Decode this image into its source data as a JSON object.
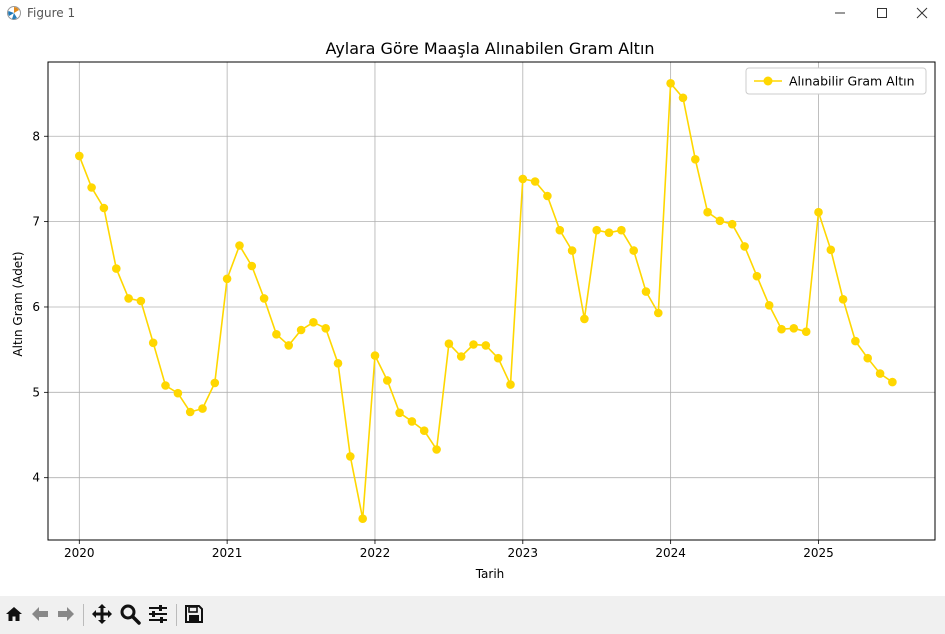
{
  "window": {
    "title": "Figure 1",
    "minimize_icon": "minimize-icon",
    "maximize_icon": "maximize-icon",
    "close_icon": "close-icon"
  },
  "toolbar": {
    "buttons": [
      {
        "name": "home-icon"
      },
      {
        "name": "back-arrow-icon"
      },
      {
        "name": "forward-arrow-icon"
      },
      {
        "name": "pan-move-icon"
      },
      {
        "name": "zoom-magnifier-icon"
      },
      {
        "name": "configure-subplots-icon"
      },
      {
        "name": "save-floppy-icon"
      }
    ]
  },
  "chart_data": {
    "type": "line",
    "title": "Aylara Göre Maaşla Alınabilen Gram Altın",
    "xlabel": "Tarih",
    "ylabel": "Altın Gram (Adet)",
    "xlim": [
      "2019-10-15",
      "2025-10-15"
    ],
    "ylim": [
      3.27,
      8.87
    ],
    "x_ticks": [
      "2020",
      "2021",
      "2022",
      "2023",
      "2024",
      "2025"
    ],
    "y_ticks": [
      "4",
      "5",
      "6",
      "7",
      "8"
    ],
    "grid": true,
    "legend": "top-right",
    "color": "#FFD700",
    "series": [
      {
        "name": "Alınabilir Gram Altın",
        "x": [
          "2020-01",
          "2020-02",
          "2020-03",
          "2020-04",
          "2020-05",
          "2020-06",
          "2020-07",
          "2020-08",
          "2020-09",
          "2020-10",
          "2020-11",
          "2020-12",
          "2021-01",
          "2021-02",
          "2021-03",
          "2021-04",
          "2021-05",
          "2021-06",
          "2021-07",
          "2021-08",
          "2021-09",
          "2021-10",
          "2021-11",
          "2021-12",
          "2022-01",
          "2022-02",
          "2022-03",
          "2022-04",
          "2022-05",
          "2022-06",
          "2022-07",
          "2022-08",
          "2022-09",
          "2022-10",
          "2022-11",
          "2022-12",
          "2023-01",
          "2023-02",
          "2023-03",
          "2023-04",
          "2023-05",
          "2023-06",
          "2023-07",
          "2023-08",
          "2023-09",
          "2023-10",
          "2023-11",
          "2023-12",
          "2024-01",
          "2024-02",
          "2024-03",
          "2024-04",
          "2024-05",
          "2024-06",
          "2024-07",
          "2024-08",
          "2024-09",
          "2024-10",
          "2024-11",
          "2024-12",
          "2025-01",
          "2025-02",
          "2025-03",
          "2025-04",
          "2025-05",
          "2025-06",
          "2025-07"
        ],
        "values": [
          7.77,
          7.4,
          7.16,
          6.45,
          6.1,
          6.07,
          5.58,
          5.08,
          4.99,
          4.77,
          4.81,
          5.11,
          6.33,
          6.72,
          6.48,
          6.1,
          5.68,
          5.55,
          5.73,
          5.82,
          5.75,
          5.34,
          4.25,
          3.52,
          5.43,
          5.14,
          4.76,
          4.66,
          4.55,
          4.33,
          5.57,
          5.42,
          5.56,
          5.55,
          5.4,
          5.09,
          7.5,
          7.47,
          7.3,
          6.9,
          6.66,
          5.86,
          6.9,
          6.87,
          6.9,
          6.66,
          6.18,
          5.93,
          8.62,
          8.45,
          7.73,
          7.11,
          7.01,
          6.97,
          6.71,
          6.36,
          6.02,
          5.74,
          5.75,
          5.71,
          7.11,
          6.67,
          6.09,
          5.6,
          5.4,
          5.22,
          5.12
        ]
      }
    ]
  }
}
